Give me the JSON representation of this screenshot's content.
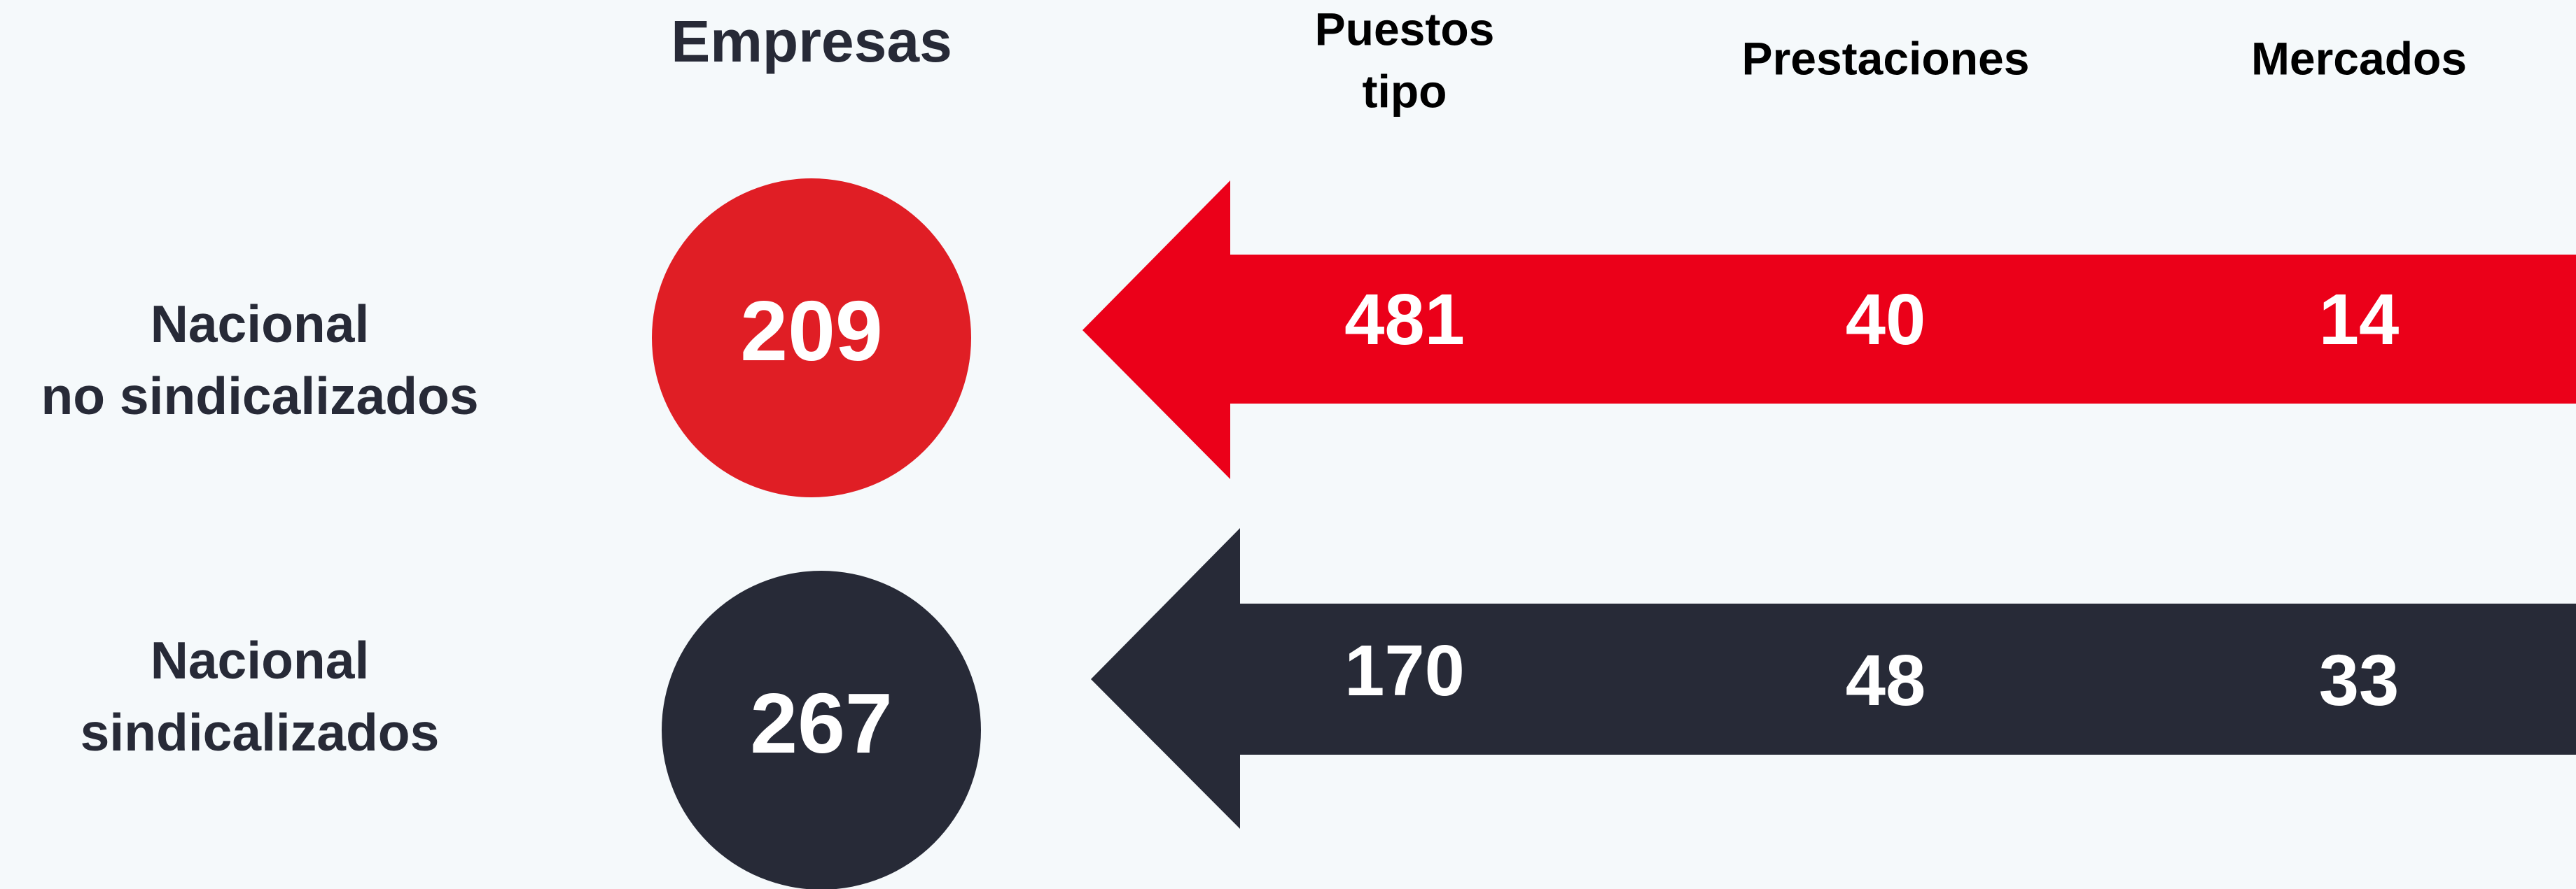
{
  "headers": {
    "empresas": "Empresas",
    "puestos_tipo": [
      "Puestos",
      "tipo"
    ],
    "prestaciones": "Prestaciones",
    "mercados": "Mercados"
  },
  "rows": [
    {
      "label": [
        "Nacional",
        "no sindicalizados"
      ],
      "empresas": 209,
      "puestos_tipo": 481,
      "prestaciones": 40,
      "mercados": 14,
      "color": "#e01e25",
      "arrow_color": "#eb0019"
    },
    {
      "label": [
        "Nacional",
        "sindicalizados"
      ],
      "empresas": 267,
      "puestos_tipo": 170,
      "prestaciones": 48,
      "mercados": 33,
      "color": "#272a37",
      "arrow_color": "#272a37"
    }
  ]
}
